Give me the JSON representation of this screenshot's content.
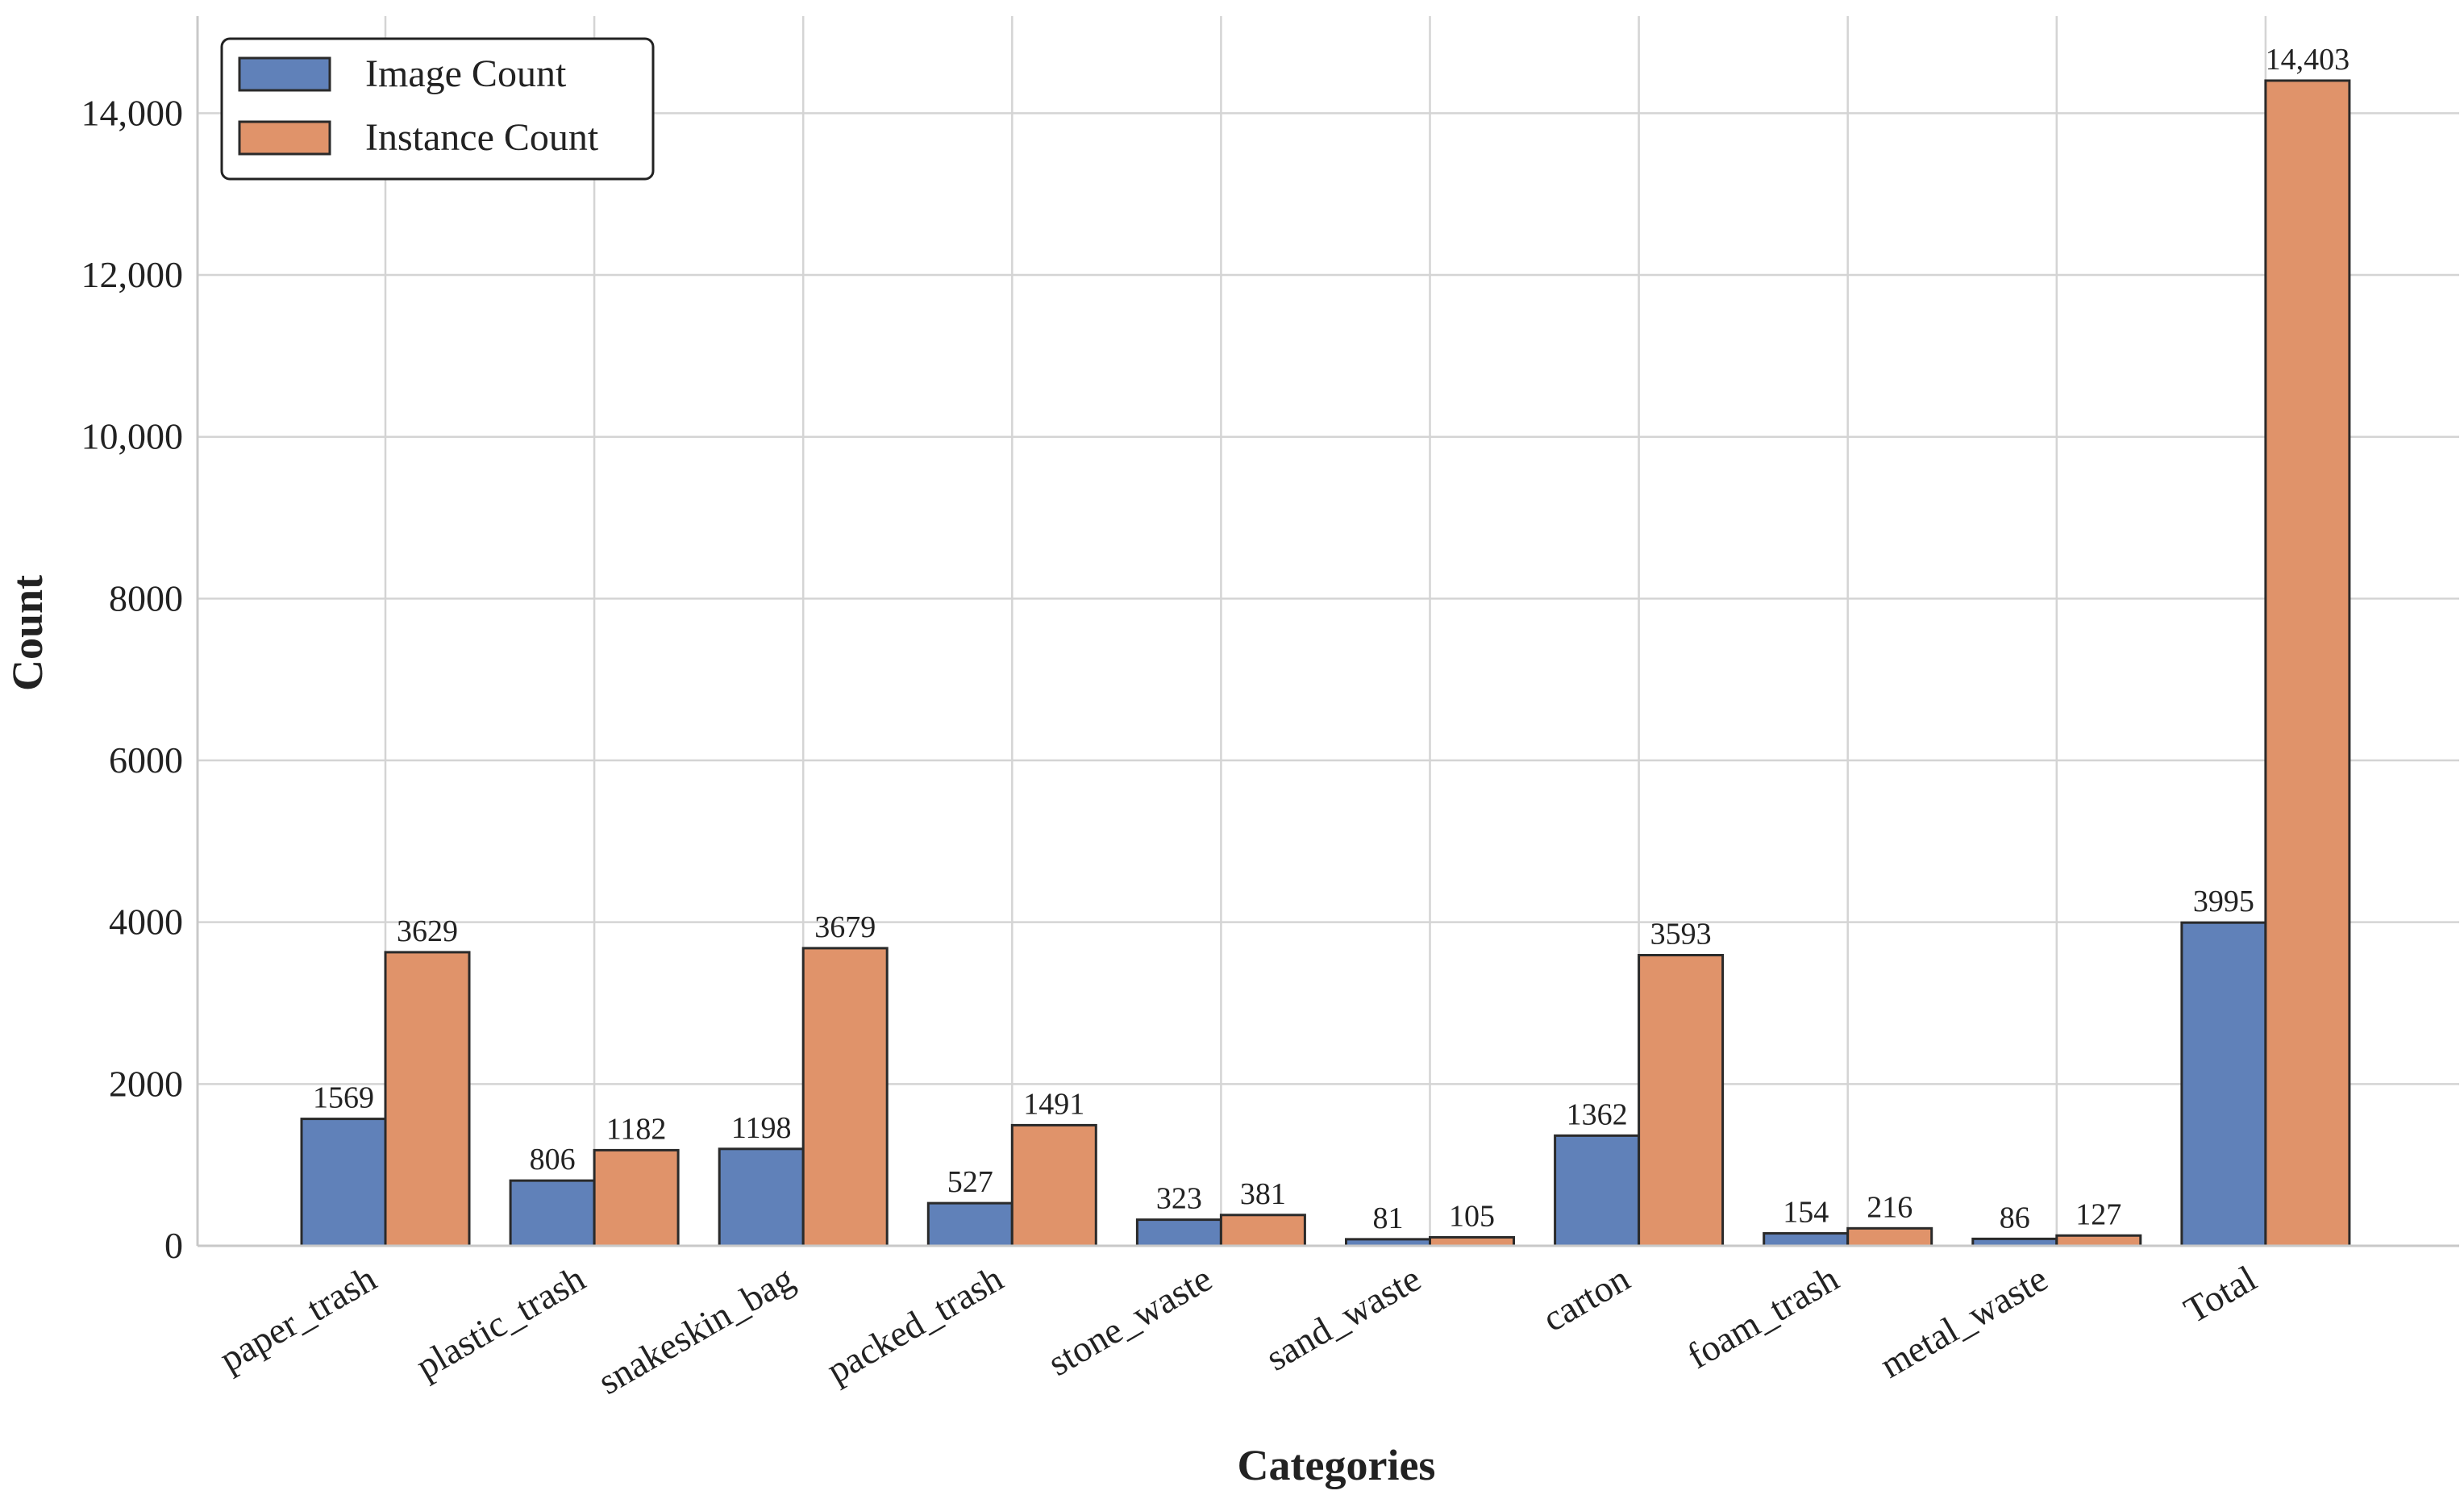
{
  "chart_data": {
    "type": "bar",
    "title": "",
    "xlabel": "Categories",
    "ylabel": "Count",
    "ylim": [
      0,
      15200
    ],
    "grid": true,
    "legend_position": "top-left",
    "categories": [
      "paper_trash",
      "plastic_trash",
      "snakeskin_bag",
      "packed_trash",
      "stone_waste",
      "sand_waste",
      "carton",
      "foam_trash",
      "metal_waste",
      "Total"
    ],
    "series": [
      {
        "name": "Image Count",
        "color": "#6081B9",
        "values": [
          1569,
          806,
          1198,
          527,
          323,
          81,
          1362,
          154,
          86,
          3995
        ],
        "labels": [
          "1569",
          "806",
          "1198",
          "527",
          "323",
          "81",
          "1362",
          "154",
          "86",
          "3995"
        ]
      },
      {
        "name": "Instance Count",
        "color": "#E0936A",
        "values": [
          3629,
          1182,
          3679,
          1491,
          381,
          105,
          3593,
          216,
          127,
          14403
        ],
        "labels": [
          "3629",
          "1182",
          "3679",
          "1491",
          "381",
          "105",
          "3593",
          "216",
          "127",
          "14,403"
        ]
      }
    ],
    "yticks": [
      {
        "value": 0,
        "label": "0"
      },
      {
        "value": 2000,
        "label": "2000"
      },
      {
        "value": 4000,
        "label": "4000"
      },
      {
        "value": 6000,
        "label": "6000"
      },
      {
        "value": 8000,
        "label": "8000"
      },
      {
        "value": 10000,
        "label": "10,000"
      },
      {
        "value": 12000,
        "label": "12,000"
      },
      {
        "value": 14000,
        "label": "14,000"
      }
    ]
  }
}
